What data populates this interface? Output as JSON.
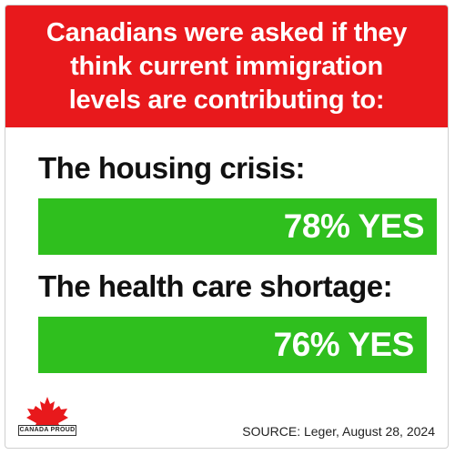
{
  "header": {
    "title": "Canadians were asked if they\nthink current immigration\nlevels are contributing to:"
  },
  "colors": {
    "banner": "#e8191c",
    "bar": "#2fbf1e",
    "text": "#111111"
  },
  "chart_data": {
    "type": "bar",
    "orientation": "horizontal",
    "categories": [
      "The housing crisis:",
      "The health care shortage:"
    ],
    "values": [
      78,
      76
    ],
    "value_labels": [
      "78% YES",
      "76% YES"
    ],
    "xlim": [
      0,
      100
    ]
  },
  "logo": {
    "icon": "maple-leaf-icon",
    "text": "CANADA PROUD"
  },
  "source": "SOURCE: Leger, August 28, 2024"
}
